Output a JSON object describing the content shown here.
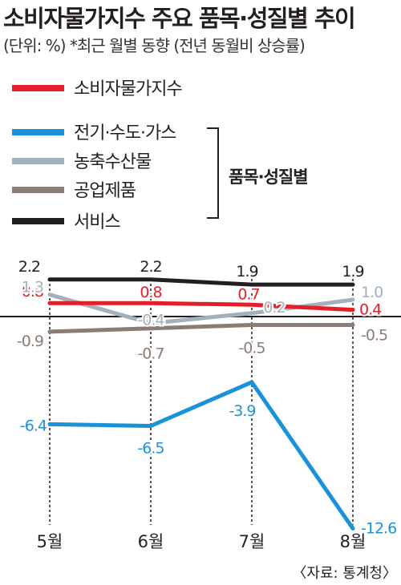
{
  "title": "소비자물가지수 주요 품목·성질별 추이",
  "subtitle": "(단위: %) *최근 월별 동향 (전년 동월비 상승률)",
  "group_label": "품목·성질별",
  "source": "〈자료: 통계청〉",
  "chart_data": {
    "type": "line",
    "categories": [
      "5월",
      "6월",
      "7월",
      "8월"
    ],
    "series": [
      {
        "name": "소비자물가지수",
        "color": "#e3202a",
        "values": [
          0.8,
          0.8,
          0.7,
          0.4
        ],
        "labels": [
          "0.8",
          "0.8",
          "0.7",
          "0.4"
        ]
      },
      {
        "name": "전기·수도·가스",
        "color": "#1b92d8",
        "values": [
          -6.4,
          -6.5,
          -3.9,
          -12.6
        ],
        "labels": [
          "-6.4",
          "-6.5",
          "-3.9",
          "-12.6"
        ]
      },
      {
        "name": "농축수산물",
        "color": "#a3b1bc",
        "values": [
          1.3,
          -0.4,
          0.2,
          1.0
        ],
        "labels": [
          "1.3",
          "-0.4",
          "0.2",
          "1.0"
        ]
      },
      {
        "name": "공업제품",
        "color": "#8c7d74",
        "values": [
          -0.9,
          -0.7,
          -0.5,
          -0.5
        ],
        "labels": [
          "-0.9",
          "-0.7",
          "-0.5",
          "-0.5"
        ]
      },
      {
        "name": "서비스",
        "color": "#231f20",
        "values": [
          2.2,
          2.2,
          1.9,
          1.9
        ],
        "labels": [
          "2.2",
          "2.2",
          "1.9",
          "1.9"
        ]
      }
    ],
    "legend_placement": "top-left",
    "grid": false,
    "gridlines": "vertical dotted at each month",
    "ylim": [
      -13,
      2.5
    ]
  }
}
